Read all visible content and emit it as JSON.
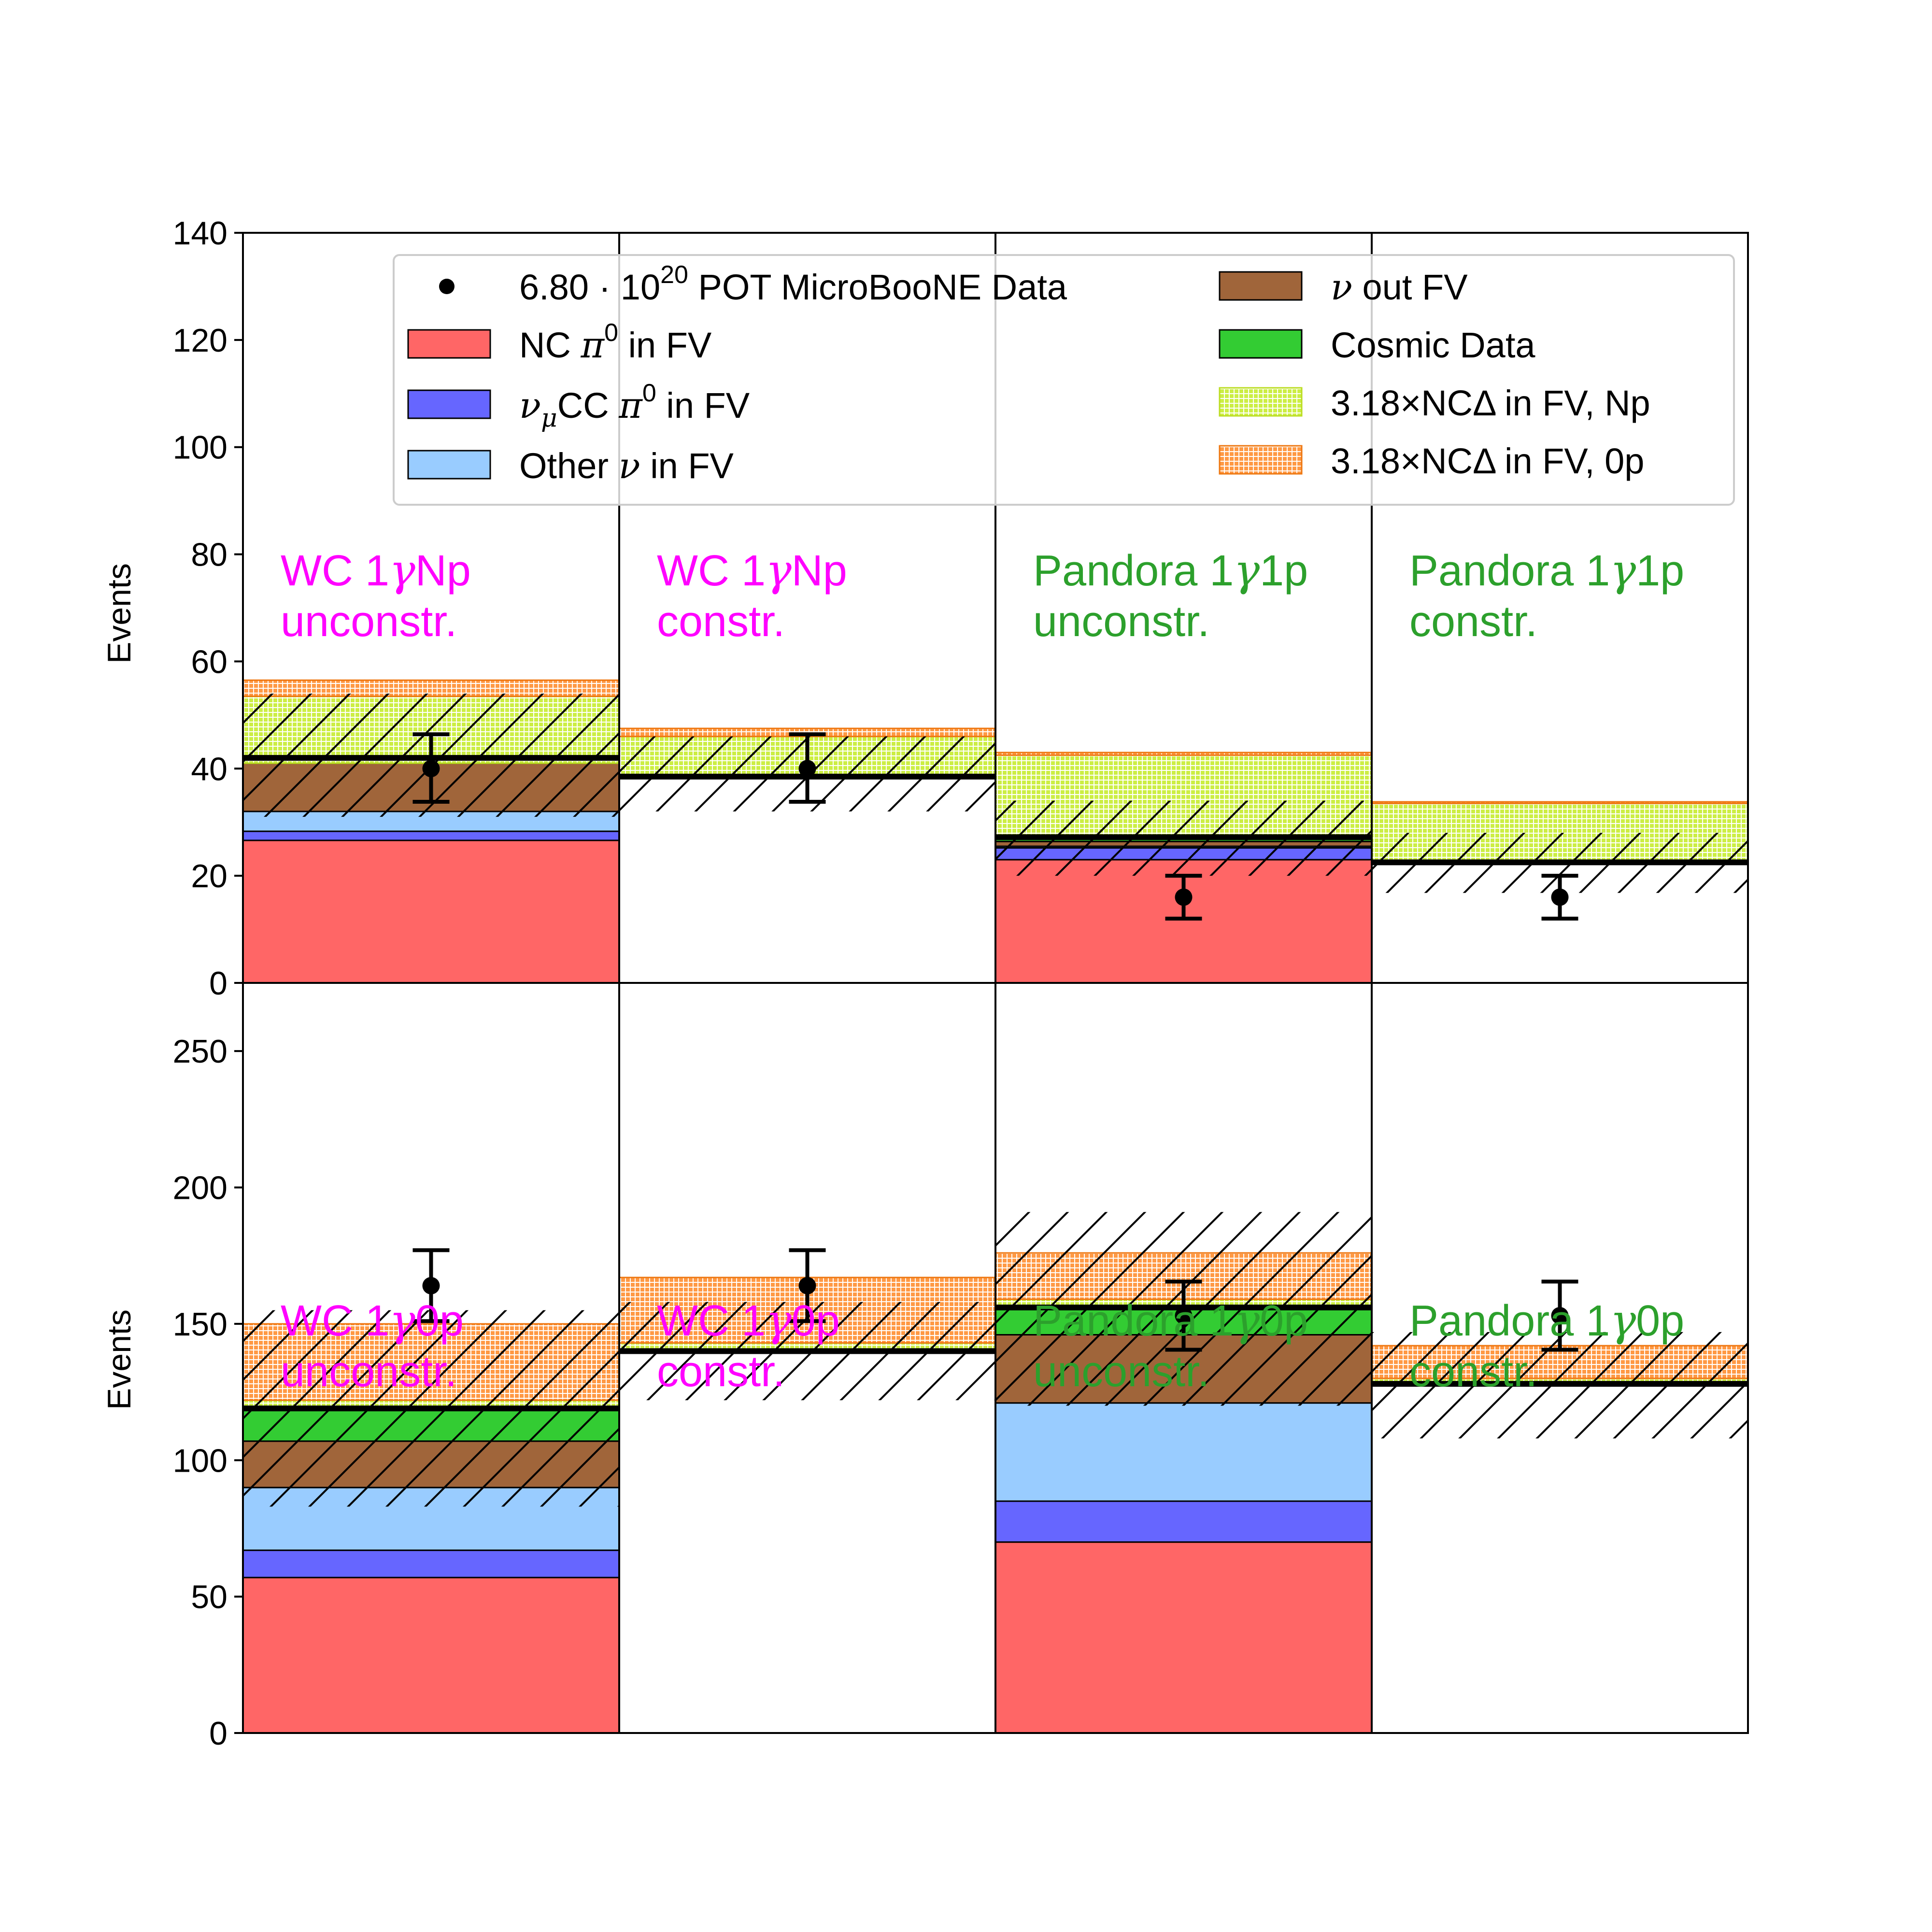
{
  "chart_data": {
    "type": "bar",
    "description": "Stacked single-bin event-count histograms in a 2x4 grid",
    "ylabel": "Events",
    "colors": {
      "nc_pi0": "#ff6666",
      "numu_cc_pi0": "#6666ff",
      "other_nu": "#99ccff",
      "nu_out_fv": "#a0653a",
      "cosmic": "#33cc33",
      "ncdelta_np": "#ccee44",
      "ncdelta_0p": "#ff9944",
      "ncdelta_0p_edge": "#ee7711",
      "wc_label": "#ff00ff",
      "pandora_label": "#2ca02c"
    },
    "legend": {
      "data": {
        "prefix": "6.80 · 10",
        "sup": "20",
        "suffix": " POT MicroBooNE Data"
      },
      "nc_pi0": {
        "a": "NC ",
        "math": "π",
        "sup": "0",
        "b": " in FV"
      },
      "numu_cc_pi0": {
        "math1": "ν",
        "sub": "μ",
        "a": "CC ",
        "math2": "π",
        "sup": "0",
        "b": " in FV"
      },
      "other_nu": {
        "a": "Other ",
        "math": "ν",
        "b": " in FV"
      },
      "nu_out_fv": {
        "math": "ν",
        "b": " out FV"
      },
      "cosmic": {
        "label": "Cosmic Data"
      },
      "ncdelta_np": {
        "label": "3.18×NCΔ in FV, Np"
      },
      "ncdelta_0p": {
        "label": "3.18×NCΔ in FV, 0p"
      }
    },
    "rows": [
      {
        "ylim": [
          0,
          140
        ],
        "yticks": [
          0,
          20,
          40,
          60,
          80,
          100,
          120,
          140
        ],
        "panels": [
          {
            "label_line1": "WC 1",
            "label_gamma": "γ",
            "label_line1b": "Np",
            "label_line2": "unconstr.",
            "label_color": "wc",
            "stack": [
              [
                "nc_pi0",
                0,
                26.6
              ],
              [
                "numu_cc_pi0",
                26.6,
                28.3
              ],
              [
                "other_nu",
                28.3,
                32
              ],
              [
                "nu_out_fv",
                32,
                41
              ],
              [
                "ncdelta_np",
                41,
                53.5
              ],
              [
                "ncdelta_0p",
                53.5,
                56.5
              ]
            ],
            "prediction": 42,
            "unc_band": [
              31,
              54
            ],
            "data": 40,
            "data_err": [
              33.8,
              46.4
            ]
          },
          {
            "label_line1": "WC 1",
            "label_gamma": "γ",
            "label_line1b": "Np",
            "label_line2": "constr.",
            "label_color": "wc",
            "stack": [
              [
                "ncdelta_np",
                38.5,
                46
              ],
              [
                "ncdelta_0p",
                46,
                47.5
              ]
            ],
            "prediction": 38.5,
            "unc_band": [
              32,
              46
            ],
            "data": 40,
            "data_err": [
              33.8,
              46.4
            ]
          },
          {
            "label_line1": "Pandora 1",
            "label_gamma": "γ",
            "label_line1b": "1p",
            "label_line2": "unconstr.",
            "label_color": "pandora",
            "stack": [
              [
                "nc_pi0",
                0,
                23
              ],
              [
                "numu_cc_pi0",
                23,
                25.2
              ],
              [
                "other_nu",
                25.2,
                25.5
              ],
              [
                "nu_out_fv",
                25.5,
                26.4
              ],
              [
                "cosmic",
                26.4,
                27.2
              ],
              [
                "ncdelta_np",
                27.2,
                42.5
              ],
              [
                "ncdelta_0p",
                42.5,
                43
              ]
            ],
            "prediction": 27.2,
            "unc_band": [
              20,
              34
            ],
            "data": 16,
            "data_err": [
              12,
              20
            ]
          },
          {
            "label_line1": "Pandora 1",
            "label_gamma": "γ",
            "label_line1b": "1p",
            "label_line2": "constr.",
            "label_color": "pandora",
            "stack": [
              [
                "ncdelta_np",
                22.5,
                33.5
              ],
              [
                "ncdelta_0p",
                33.5,
                33.8
              ]
            ],
            "prediction": 22.5,
            "unc_band": [
              16.8,
              28
            ],
            "data": 16,
            "data_err": [
              12,
              20
            ]
          }
        ]
      },
      {
        "ylim": [
          0,
          275
        ],
        "yticks": [
          0,
          50,
          100,
          150,
          200,
          250
        ],
        "panels": [
          {
            "label_line1": "WC 1",
            "label_gamma": "γ",
            "label_line1b": "0p",
            "label_line2": "unconstr.",
            "label_color": "wc",
            "stack": [
              [
                "nc_pi0",
                0,
                57
              ],
              [
                "numu_cc_pi0",
                57,
                67
              ],
              [
                "other_nu",
                67,
                90
              ],
              [
                "nu_out_fv",
                90,
                107
              ],
              [
                "cosmic",
                107,
                119
              ],
              [
                "ncdelta_np",
                119,
                122
              ],
              [
                "ncdelta_0p",
                122,
                150
              ]
            ],
            "prediction": 119,
            "unc_band": [
              83,
              155
            ],
            "data": 164,
            "data_err": [
              151,
              177
            ]
          },
          {
            "label_line1": "WC 1",
            "label_gamma": "γ",
            "label_line1b": "0p",
            "label_line2": "constr.",
            "label_color": "wc",
            "stack": [
              [
                "ncdelta_np",
                140,
                143
              ],
              [
                "ncdelta_0p",
                143,
                167
              ]
            ],
            "prediction": 140,
            "unc_band": [
              122,
              158
            ],
            "data": 164,
            "data_err": [
              151,
              177
            ]
          },
          {
            "label_line1": "Pandora 1",
            "label_gamma": "γ",
            "label_line1b": "0p",
            "label_line2": "unconstr.",
            "label_color": "pandora",
            "stack": [
              [
                "nc_pi0",
                0,
                70
              ],
              [
                "numu_cc_pi0",
                70,
                85
              ],
              [
                "other_nu",
                85,
                121
              ],
              [
                "nu_out_fv",
                121,
                146
              ],
              [
                "cosmic",
                146,
                156
              ],
              [
                "ncdelta_np",
                156,
                159
              ],
              [
                "ncdelta_0p",
                159,
                176
              ]
            ],
            "prediction": 156,
            "unc_band": [
              120,
              191
            ],
            "data": 153,
            "data_err": [
              140.5,
              165.5
            ]
          },
          {
            "label_line1": "Pandora 1",
            "label_gamma": "γ",
            "label_line1b": "0p",
            "label_line2": "constr.",
            "label_color": "pandora",
            "stack": [
              [
                "ncdelta_np",
                128,
                130
              ],
              [
                "ncdelta_0p",
                130,
                142
              ]
            ],
            "prediction": 128,
            "unc_band": [
              108,
              147
            ],
            "data": 153,
            "data_err": [
              140.5,
              165.5
            ]
          }
        ]
      }
    ]
  }
}
